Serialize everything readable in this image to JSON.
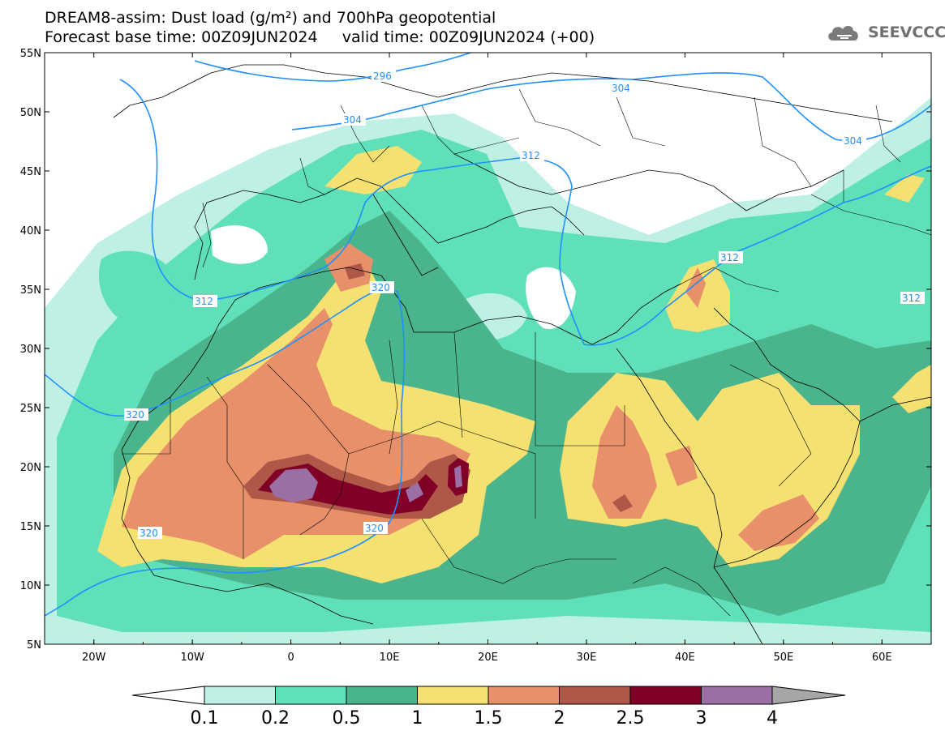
{
  "header": {
    "title": "DREAM8-assim: Dust load (g/m²) and 700hPa geopotential",
    "forecast_base": "Forecast base time: 00Z09JUN2024",
    "valid_time": "valid time: 00Z09JUN2024 (+00)"
  },
  "brand": {
    "text": "SEEVCCC",
    "icon": "cloud-icon"
  },
  "axes": {
    "lat_labels": [
      "55N",
      "50N",
      "45N",
      "40N",
      "35N",
      "30N",
      "25N",
      "20N",
      "15N",
      "10N",
      "5N"
    ],
    "lon_labels": [
      "20W",
      "10W",
      "0",
      "10E",
      "20E",
      "30E",
      "40E",
      "50E",
      "60E"
    ],
    "lat_range": [
      5,
      55
    ],
    "lon_range": [
      -25,
      65
    ]
  },
  "colorbar": {
    "ticks": [
      "0.1",
      "0.2",
      "0.5",
      "1",
      "1.5",
      "2",
      "2.5",
      "3",
      "4"
    ],
    "colors": [
      "#bff0e6",
      "#5fe0b8",
      "#4ab48c",
      "#f5e072",
      "#e8906a",
      "#b05848",
      "#800028",
      "#9c6ea6"
    ],
    "under_color": "#ffffff",
    "over_color": "#a6a6a6"
  },
  "contours": {
    "color": "#1e90ff",
    "labels": [
      "296",
      "304",
      "304",
      "304",
      "312",
      "312",
      "312",
      "312",
      "320",
      "320",
      "320",
      "320"
    ]
  }
}
